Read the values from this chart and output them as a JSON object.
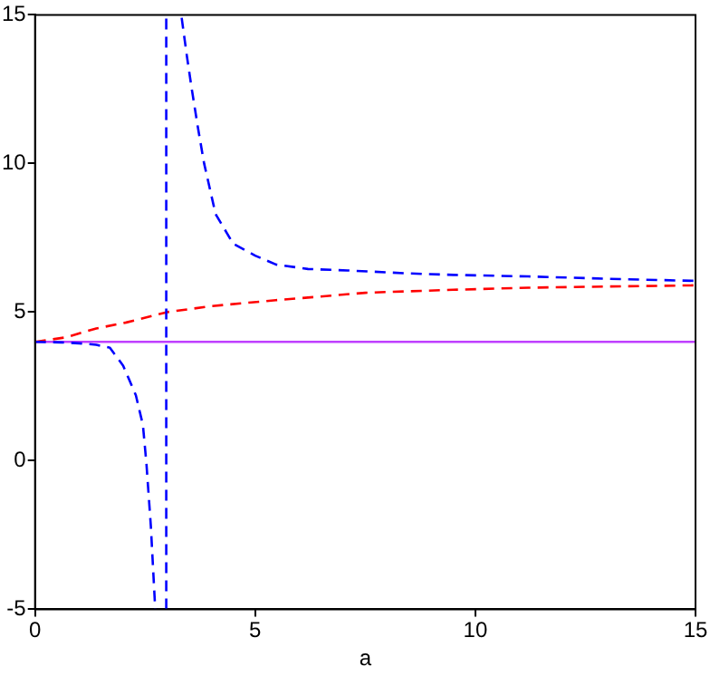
{
  "chart_data": {
    "type": "line",
    "xlabel": "a",
    "xlim": [
      0,
      15
    ],
    "xticks": [
      0,
      5,
      10,
      15
    ],
    "ylim": [
      -5,
      15
    ],
    "yticks": [
      -5,
      0,
      5,
      10,
      15
    ],
    "grid": false,
    "legend": false,
    "marker": "none",
    "series": [
      {
        "color": "#0000ff",
        "line_style": "dashed",
        "x": [
          0,
          0.6,
          1.0,
          1.39,
          1.7,
          2.0,
          2.29,
          2.45,
          2.53,
          2.63,
          2.73,
          null,
          2.98,
          2.98,
          null,
          3.33,
          3.45,
          3.56,
          3.7,
          3.84,
          4.1,
          4.5,
          5.0,
          5.47,
          6.2,
          7.1,
          8.5,
          9.5,
          11.2,
          13,
          15
        ],
        "values": [
          4,
          3.98,
          3.95,
          3.9,
          3.8,
          3.2,
          2.2,
          1.2,
          -0.1,
          -2.2,
          -5,
          null,
          -5,
          15,
          null,
          14.9,
          13.6,
          12.5,
          11.2,
          10.0,
          8.3,
          7.3,
          6.9,
          6.6,
          6.45,
          6.4,
          6.3,
          6.25,
          6.2,
          6.12,
          6.05
        ]
      },
      {
        "color": "#ff0000",
        "line_style": "dashed",
        "x": [
          0,
          0.7,
          1.39,
          2.07,
          3,
          4,
          5.47,
          7.5,
          9.5,
          11.2,
          13,
          15
        ],
        "values": [
          4,
          4.15,
          4.45,
          4.65,
          5.0,
          5.2,
          5.4,
          5.65,
          5.75,
          5.82,
          5.86,
          5.9
        ]
      },
      {
        "color": "#bf3fff",
        "line_style": "solid",
        "x": [
          0,
          15
        ],
        "values": [
          4,
          4
        ]
      }
    ]
  }
}
